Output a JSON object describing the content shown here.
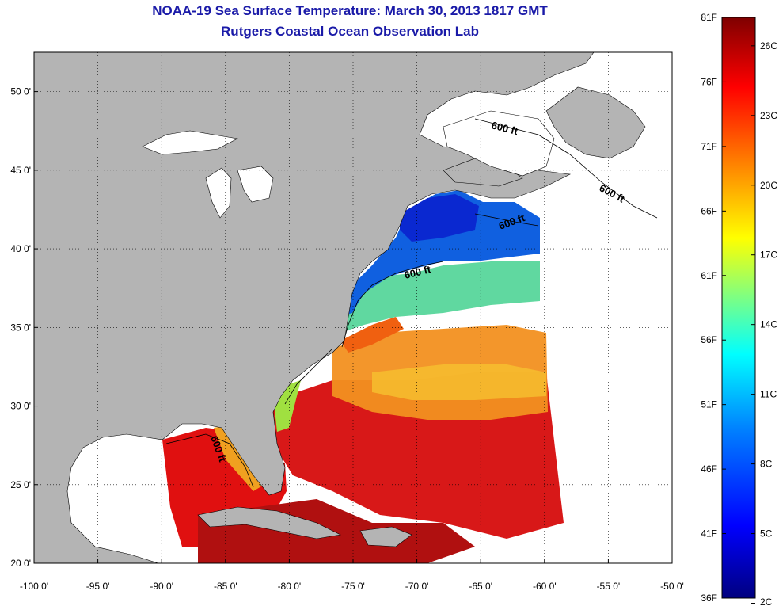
{
  "title": {
    "line1": "NOAA-19 Sea Surface Temperature:  March 30, 2013 1817 GMT",
    "line2": "Rutgers Coastal Ocean Observation Lab"
  },
  "map": {
    "lon_range": [
      -100,
      -50
    ],
    "lat_range": [
      20,
      52.5
    ],
    "lon_ticks": [
      "-100 0'",
      "-95 0'",
      "-90 0'",
      "-85 0'",
      "-80 0'",
      "-75 0'",
      "-70 0'",
      "-65 0'",
      "-60 0'",
      "-55 0'",
      "-50 0'"
    ],
    "lat_ticks": [
      "20 0'",
      "25 0'",
      "30 0'",
      "35 0'",
      "40 0'",
      "45 0'",
      "50 0'"
    ],
    "grid": "dotted",
    "land_color": "#b4b4b4",
    "no_data_color": "#ffffff",
    "isobath_labels": [
      "600 ft",
      "600 ft",
      "600 ft",
      "600 ft",
      "600 ft"
    ]
  },
  "colorbar": {
    "fahrenheit_labels": [
      "81F",
      "76F",
      "71F",
      "66F",
      "61F",
      "56F",
      "51F",
      "46F",
      "41F",
      "36F"
    ],
    "celsius_labels": [
      "26C",
      "23C",
      "20C",
      "17C",
      "14C",
      "11C",
      "8C",
      "5C",
      "2C"
    ],
    "colors": [
      "#7f0000",
      "#ff0000",
      "#ff8000",
      "#ffff00",
      "#80ff80",
      "#00ffff",
      "#0080ff",
      "#0000ff",
      "#00007f"
    ]
  }
}
